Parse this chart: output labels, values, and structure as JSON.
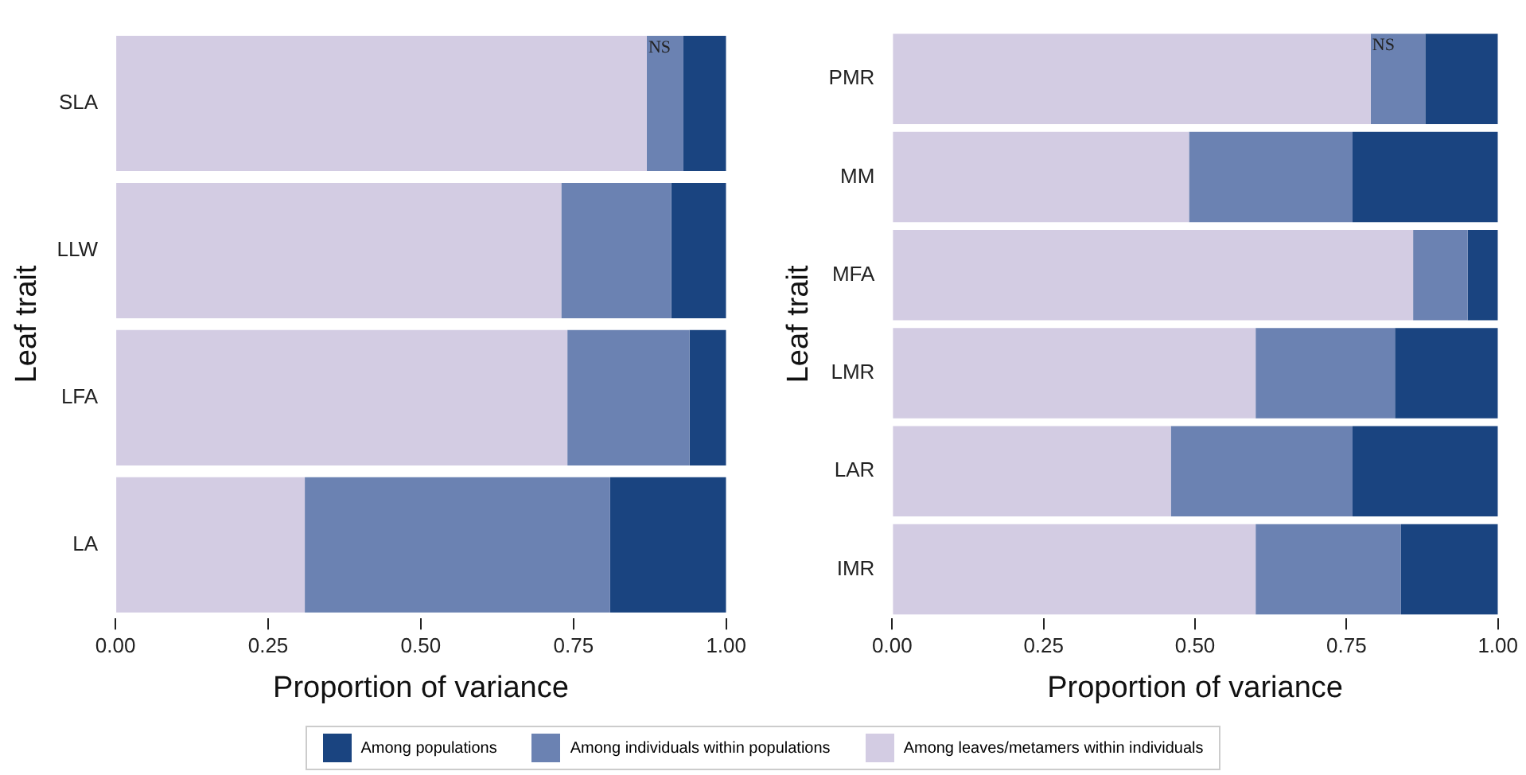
{
  "chart_data": [
    {
      "type": "bar",
      "orientation": "horizontal",
      "stacked": true,
      "categories": [
        "SLA",
        "LLW",
        "LFA",
        "LA"
      ],
      "series": [
        {
          "name": "Among leaves/metamers within individuals",
          "color": "#d3cce3",
          "values": [
            0.87,
            0.73,
            0.74,
            0.31
          ]
        },
        {
          "name": "Among individuals within populations",
          "color": "#6b82b2",
          "values": [
            0.06,
            0.18,
            0.2,
            0.5
          ]
        },
        {
          "name": "Among populations",
          "color": "#1a4480",
          "values": [
            0.07,
            0.09,
            0.06,
            0.19
          ]
        }
      ],
      "xlabel": "Proportion of variance",
      "ylabel": "Leaf trait",
      "xlim": [
        0,
        1
      ],
      "xticks": [
        {
          "value": 0,
          "label": "0.00"
        },
        {
          "value": 0.25,
          "label": "0.25"
        },
        {
          "value": 0.5,
          "label": "0.50"
        },
        {
          "value": 0.75,
          "label": "0.75"
        },
        {
          "value": 1,
          "label": "1.00"
        }
      ],
      "annotations": [
        {
          "text": "NS",
          "x": 0.87,
          "y": "SLA"
        }
      ],
      "grid": false,
      "legend": "bottom"
    },
    {
      "type": "bar",
      "orientation": "horizontal",
      "stacked": true,
      "categories": [
        "PMR",
        "MM",
        "MFA",
        "LMR",
        "LAR",
        "IMR"
      ],
      "series": [
        {
          "name": "Among leaves/metamers within individuals",
          "color": "#d3cce3",
          "values": [
            0.79,
            0.49,
            0.86,
            0.6,
            0.46,
            0.6
          ]
        },
        {
          "name": "Among individuals within populations",
          "color": "#6b82b2",
          "values": [
            0.09,
            0.27,
            0.09,
            0.23,
            0.3,
            0.24
          ]
        },
        {
          "name": "Among populations",
          "color": "#1a4480",
          "values": [
            0.12,
            0.24,
            0.05,
            0.17,
            0.24,
            0.16
          ]
        }
      ],
      "xlabel": "Proportion of variance",
      "ylabel": "Leaf trait",
      "xlim": [
        0,
        1
      ],
      "xticks": [
        {
          "value": 0,
          "label": "0.00"
        },
        {
          "value": 0.25,
          "label": "0.25"
        },
        {
          "value": 0.5,
          "label": "0.50"
        },
        {
          "value": 0.75,
          "label": "0.75"
        },
        {
          "value": 1,
          "label": "1.00"
        }
      ],
      "annotations": [
        {
          "text": "NS",
          "x": 0.79,
          "y": "PMR"
        }
      ],
      "grid": false,
      "legend": "bottom"
    }
  ]
}
